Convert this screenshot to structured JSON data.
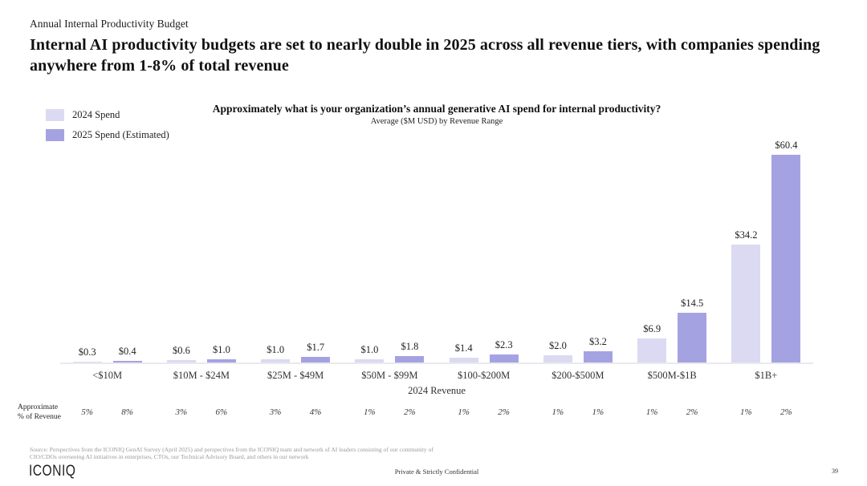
{
  "header": {
    "eyebrow": "Annual Internal Productivity Budget",
    "title": "Internal AI productivity budgets are set to nearly double in 2025 across all revenue tiers, with companies spending anywhere from 1-8% of total revenue"
  },
  "legend": {
    "items": [
      {
        "label": "2024 Spend",
        "color": "#DBDAF2"
      },
      {
        "label": "2025 Spend (Estimated)",
        "color": "#A5A2E2"
      }
    ]
  },
  "chart_data": {
    "type": "bar",
    "title": "Approximately what is your organization’s annual generative AI spend for internal productivity?",
    "subtitle": "Average ($M USD) by Revenue Range",
    "xlabel": "2024 Revenue",
    "categories": [
      "<$10M",
      "$10M - $24M",
      "$25M - $49M",
      "$50M - $99M",
      "$100-$200M",
      "$200-$500M",
      "$500M-$1B",
      "$1B+"
    ],
    "series": [
      {
        "name": "2024 Spend",
        "color": "#DBDAF2",
        "values": [
          0.3,
          0.6,
          1.0,
          1.0,
          1.4,
          2.0,
          6.9,
          34.2
        ]
      },
      {
        "name": "2025 Spend (Estimated)",
        "color": "#A5A2E2",
        "values": [
          0.4,
          1.0,
          1.7,
          1.8,
          2.3,
          3.2,
          14.5,
          60.4
        ]
      }
    ],
    "value_prefix": "$",
    "ylim": [
      0,
      62
    ],
    "grid": false,
    "legend_position": "top-left",
    "percent_of_revenue": {
      "label_line1": "Approximate",
      "label_line2": "% of Revenue",
      "values": [
        [
          "5%",
          "8%"
        ],
        [
          "3%",
          "6%"
        ],
        [
          "3%",
          "4%"
        ],
        [
          "1%",
          "2%"
        ],
        [
          "1%",
          "2%"
        ],
        [
          "1%",
          "1%"
        ],
        [
          "1%",
          "2%"
        ],
        [
          "1%",
          "2%"
        ]
      ]
    }
  },
  "footer": {
    "source_line1": "Source: Perspectives from the ICONIQ GenAI Survey (April 2025) and perspectives from the ICONIQ team and network of AI leaders consisting of our community of",
    "source_line2": "CIO/CDOs overseeing AI initiatives in enterprises, CTOs, our Technical Advisory Board, and others in our network",
    "logo": "ICONIQ",
    "confidential": "Private & Strictly Confidential",
    "page_number": "39"
  }
}
